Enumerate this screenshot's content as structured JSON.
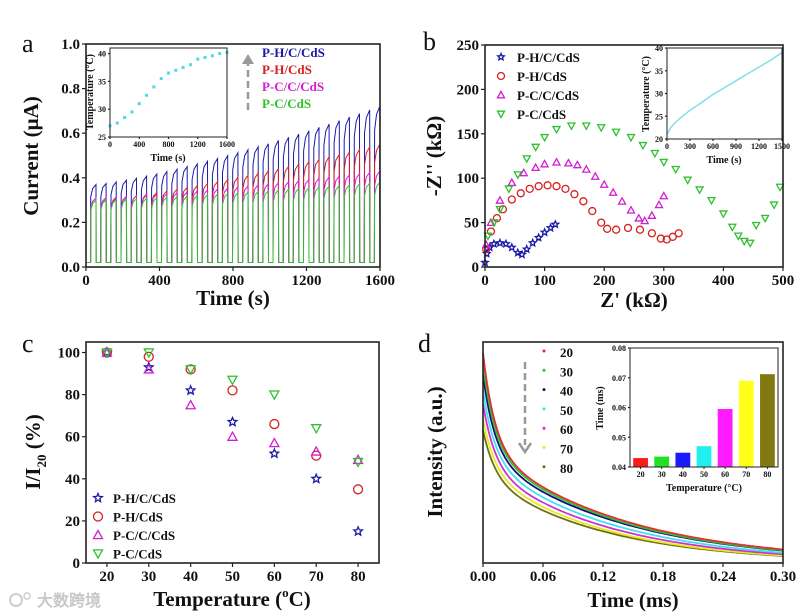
{
  "watermark": "大数跨境",
  "chart_data": [
    {
      "panel": "a",
      "type": "line",
      "xlabel": "Time (s)",
      "ylabel": "Current (μA)",
      "xlim": [
        0,
        1600
      ],
      "ylim": [
        0,
        1.0
      ],
      "xticks": [
        "0",
        "400",
        "800",
        "1200",
        "1600"
      ],
      "yticks": [
        "0.0",
        "0.2",
        "0.4",
        "0.6",
        "0.8",
        "1.0"
      ],
      "cycles": 29,
      "baseline": 0.02,
      "series": [
        {
          "name": "P-H/C/CdS",
          "color": "#1a1aa8",
          "peak_start": 0.37,
          "peak_end": 0.72
        },
        {
          "name": "P-H/CdS",
          "color": "#d42020",
          "peak_start": 0.3,
          "peak_end": 0.55
        },
        {
          "name": "P-C/C/CdS",
          "color": "#d21ed2",
          "peak_start": 0.31,
          "peak_end": 0.43
        },
        {
          "name": "P-C/CdS",
          "color": "#2ec02e",
          "peak_start": 0.3,
          "peak_end": 0.38
        }
      ],
      "inset": {
        "type": "scatter",
        "xlabel": "Time (s)",
        "ylabel": "Temperature (°C)",
        "xlim": [
          0,
          1600
        ],
        "ylim": [
          25,
          41
        ],
        "xticks": [
          "0",
          "400",
          "800",
          "1200",
          "1600"
        ],
        "yticks": [
          "25",
          "30",
          "35",
          "40"
        ],
        "color": "#4fd8e8",
        "x": [
          0,
          100,
          200,
          300,
          400,
          500,
          600,
          700,
          800,
          900,
          1000,
          1100,
          1200,
          1300,
          1400,
          1500,
          1600
        ],
        "y": [
          27,
          27.5,
          28.5,
          29.5,
          31,
          32.5,
          34,
          35.5,
          36.5,
          37,
          37.5,
          38,
          39,
          39.3,
          39.6,
          40,
          40.2
        ]
      }
    },
    {
      "panel": "b",
      "type": "scatter",
      "xlabel": "Z' (kΩ)",
      "ylabel": "-Z'' (kΩ)",
      "xlim": [
        0,
        500
      ],
      "ylim": [
        0,
        250
      ],
      "xticks": [
        "0",
        "100",
        "200",
        "300",
        "400",
        "500"
      ],
      "yticks": [
        "0",
        "50",
        "100",
        "150",
        "200",
        "250"
      ],
      "series": [
        {
          "name": "P-H/C/CdS",
          "marker": "star",
          "color": "#1a1aa8",
          "points": [
            [
              0,
              5
            ],
            [
              3,
              15
            ],
            [
              8,
              22
            ],
            [
              15,
              26
            ],
            [
              25,
              27
            ],
            [
              35,
              26
            ],
            [
              45,
              22
            ],
            [
              55,
              16
            ],
            [
              62,
              14
            ],
            [
              70,
              20
            ],
            [
              80,
              27
            ],
            [
              90,
              33
            ],
            [
              100,
              39
            ],
            [
              110,
              44
            ],
            [
              118,
              48
            ]
          ]
        },
        {
          "name": "P-H/CdS",
          "marker": "circle",
          "color": "#d42020",
          "points": [
            [
              2,
              20
            ],
            [
              10,
              40
            ],
            [
              20,
              55
            ],
            [
              30,
              65
            ],
            [
              45,
              76
            ],
            [
              60,
              83
            ],
            [
              75,
              88
            ],
            [
              90,
              91
            ],
            [
              105,
              92
            ],
            [
              120,
              91
            ],
            [
              135,
              88
            ],
            [
              150,
              82
            ],
            [
              165,
              74
            ],
            [
              180,
              63
            ],
            [
              195,
              50
            ],
            [
              205,
              43
            ],
            [
              220,
              42
            ],
            [
              240,
              44
            ],
            [
              260,
              42
            ],
            [
              280,
              38
            ],
            [
              295,
              32
            ],
            [
              305,
              31
            ],
            [
              315,
              34
            ],
            [
              325,
              38
            ]
          ]
        },
        {
          "name": "P-C/C/CdS",
          "marker": "triangle-up",
          "color": "#d21ed2",
          "points": [
            [
              2,
              25
            ],
            [
              10,
              50
            ],
            [
              25,
              75
            ],
            [
              45,
              95
            ],
            [
              65,
              106
            ],
            [
              85,
              112
            ],
            [
              100,
              116
            ],
            [
              120,
              118
            ],
            [
              140,
              117
            ],
            [
              155,
              115
            ],
            [
              170,
              110
            ],
            [
              185,
              102
            ],
            [
              200,
              93
            ],
            [
              215,
              84
            ],
            [
              230,
              74
            ],
            [
              245,
              64
            ],
            [
              258,
              55
            ],
            [
              268,
              52
            ],
            [
              280,
              58
            ],
            [
              292,
              70
            ],
            [
              300,
              80
            ]
          ]
        },
        {
          "name": "P-C/CdS",
          "marker": "triangle-down",
          "color": "#2ec02e",
          "points": [
            [
              5,
              35
            ],
            [
              15,
              50
            ],
            [
              25,
              65
            ],
            [
              40,
              88
            ],
            [
              55,
              104
            ],
            [
              70,
              122
            ],
            [
              85,
              135
            ],
            [
              100,
              146
            ],
            [
              120,
              155
            ],
            [
              145,
              159
            ],
            [
              170,
              159
            ],
            [
              195,
              157
            ],
            [
              220,
              152
            ],
            [
              245,
              146
            ],
            [
              265,
              137
            ],
            [
              285,
              128
            ],
            [
              300,
              118
            ],
            [
              320,
              110
            ],
            [
              340,
              98
            ],
            [
              360,
              87
            ],
            [
              380,
              75
            ],
            [
              400,
              60
            ],
            [
              415,
              45
            ],
            [
              425,
              35
            ],
            [
              435,
              29
            ],
            [
              445,
              27
            ],
            [
              455,
              47
            ],
            [
              470,
              55
            ],
            [
              485,
              70
            ],
            [
              495,
              90
            ]
          ]
        }
      ],
      "inset": {
        "type": "line",
        "xlabel": "Time (s)",
        "ylabel": "Temperature (°C)",
        "xlim": [
          0,
          1500
        ],
        "ylim": [
          20,
          40
        ],
        "xticks": [
          "0",
          "300",
          "600",
          "900",
          "1200",
          "1500"
        ],
        "yticks": [
          "20",
          "25",
          "30",
          "35",
          "40"
        ],
        "color": "#7fe0ea",
        "x": [
          0,
          50,
          100,
          200,
          300,
          450,
          600,
          750,
          900,
          1050,
          1200,
          1350,
          1500
        ],
        "y": [
          21,
          22.5,
          23.5,
          25,
          26.3,
          28,
          29.8,
          31.3,
          32.8,
          34.3,
          35.8,
          37.3,
          39
        ]
      }
    },
    {
      "panel": "c",
      "type": "scatter",
      "xlabel": {
        "main": "Temperature (",
        "sup": "o",
        "end": "C)"
      },
      "ylabel": {
        "main": "I/I",
        "sub": "20",
        "end": " (%)"
      },
      "xlim": [
        15,
        85
      ],
      "ylim": [
        0,
        105
      ],
      "x": [
        20,
        30,
        40,
        50,
        60,
        70,
        80
      ],
      "xticks": [
        "20",
        "30",
        "40",
        "50",
        "60",
        "70",
        "80"
      ],
      "yticks": [
        "0",
        "20",
        "40",
        "60",
        "80",
        "100"
      ],
      "legend": "bottom-left",
      "series": [
        {
          "name": "P-H/C/CdS",
          "marker": "star",
          "color": "#1a1aa8",
          "values": [
            100,
            93,
            82,
            67,
            52,
            40,
            15
          ]
        },
        {
          "name": "P-H/CdS",
          "marker": "circle",
          "color": "#d42020",
          "values": [
            100,
            98,
            92,
            82,
            66,
            51,
            35
          ]
        },
        {
          "name": "P-C/C/CdS",
          "marker": "triangle-up",
          "color": "#d21ed2",
          "values": [
            100,
            92,
            75,
            60,
            57,
            53,
            49
          ]
        },
        {
          "name": "P-C/CdS",
          "marker": "triangle-down",
          "color": "#2ec02e",
          "values": [
            100,
            100,
            92,
            87,
            80,
            64,
            48
          ]
        }
      ]
    },
    {
      "panel": "d",
      "type": "line",
      "xlabel": "Time (ms)",
      "ylabel": "Intensity (a.u.)",
      "xlim": [
        0,
        0.3
      ],
      "xticks": [
        "0.00",
        "0.06",
        "0.12",
        "0.18",
        "0.24",
        "0.30"
      ],
      "series": [
        {
          "name": "20",
          "color": "#e03030",
          "initial_intensity": 0.95,
          "fast_fraction": 0.45,
          "tau_ms": 0.14
        },
        {
          "name": "30",
          "color": "#30c030",
          "initial_intensity": 0.9,
          "fast_fraction": 0.43,
          "tau_ms": 0.137
        },
        {
          "name": "40",
          "color": "#101080",
          "initial_intensity": 0.85,
          "fast_fraction": 0.42,
          "tau_ms": 0.138
        },
        {
          "name": "50",
          "color": "#40e0f0",
          "initial_intensity": 0.78,
          "fast_fraction": 0.4,
          "tau_ms": 0.13
        },
        {
          "name": "60",
          "color": "#d030d0",
          "initial_intensity": 0.72,
          "fast_fraction": 0.39,
          "tau_ms": 0.125
        },
        {
          "name": "70",
          "color": "#e8e820",
          "initial_intensity": 0.65,
          "fast_fraction": 0.36,
          "tau_ms": 0.12
        },
        {
          "name": "80",
          "color": "#707010",
          "initial_intensity": 0.6,
          "fast_fraction": 0.35,
          "tau_ms": 0.12
        }
      ],
      "inset": {
        "type": "bar",
        "xlabel": "Temperature (°C)",
        "ylabel": "Time (ms)",
        "ylim": [
          0.04,
          0.08
        ],
        "yticks": [
          "0.04",
          "0.05",
          "0.06",
          "0.07",
          "0.08"
        ],
        "categories": [
          "20",
          "30",
          "40",
          "50",
          "60",
          "70",
          "80"
        ],
        "values": [
          0.043,
          0.0435,
          0.0448,
          0.047,
          0.0595,
          0.069,
          0.0712
        ],
        "colors": [
          "#ff1a1a",
          "#22e022",
          "#1a1aff",
          "#22f0f0",
          "#ff1aff",
          "#ffff1a",
          "#807a10"
        ]
      }
    }
  ],
  "panel_labels": [
    "a",
    "b",
    "c",
    "d"
  ]
}
